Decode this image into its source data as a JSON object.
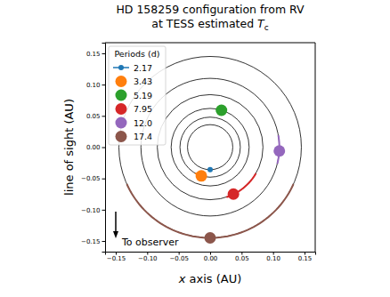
{
  "chart_data": {
    "type": "scatter",
    "title": "HD 158259 configuration from RV",
    "subtitle": "at TESS estimated Tc",
    "x_label": "x axis (AU)",
    "y_label": "line of sight (AU)",
    "legend_title": "Periods (d)",
    "annotation": "To observer",
    "legend": "upper left",
    "xlim": [
      -0.167,
      0.167
    ],
    "ylim": [
      -0.167,
      0.167
    ],
    "xticks": [
      {
        "value": -0.15,
        "label": "−0.15"
      },
      {
        "value": -0.1,
        "label": "−0.10"
      },
      {
        "value": -0.05,
        "label": "−0.05"
      },
      {
        "value": 0,
        "label": "0.00"
      },
      {
        "value": 0.05,
        "label": "0.05"
      },
      {
        "value": 0.1,
        "label": "0.10"
      },
      {
        "value": 0.15,
        "label": "0.15"
      }
    ],
    "yticks": [
      {
        "value": -0.15,
        "label": "−0.15"
      },
      {
        "value": -0.1,
        "label": "−0.10"
      },
      {
        "value": -0.05,
        "label": "−0.05"
      },
      {
        "value": 0,
        "label": "0.00"
      },
      {
        "value": 0.05,
        "label": "0.05"
      },
      {
        "value": 0.1,
        "label": "0.10"
      },
      {
        "value": 0.15,
        "label": "0.15"
      }
    ],
    "series": [
      {
        "name": "2.17",
        "color": "#1f77b4",
        "marker": ".",
        "line_style": "solid",
        "x": [
          0.0
        ],
        "values": [
          -0.036
        ],
        "orbit": 0.036,
        "arc": [
          266,
          274
        ]
      },
      {
        "name": "3.43",
        "color": "#ff7f0e",
        "marker": "o",
        "x": [
          -0.014
        ],
        "values": [
          -0.046
        ],
        "orbit": 0.048,
        "arc": [
          240,
          252
        ]
      },
      {
        "name": "5.19",
        "color": "#2ca02c",
        "marker": "o",
        "x": [
          0.018
        ],
        "values": [
          0.059
        ],
        "orbit": 0.062,
        "arc": [
          66,
          80
        ]
      },
      {
        "name": "7.95",
        "color": "#d62728",
        "marker": "o",
        "x": [
          0.037
        ],
        "values": [
          -0.075
        ],
        "orbit": 0.084,
        "arc": [
          -72,
          -30
        ]
      },
      {
        "name": "12.0",
        "color": "#9467bd",
        "marker": "o",
        "x": [
          0.11
        ],
        "values": [
          -0.006
        ],
        "orbit": 0.11,
        "arc": [
          -14,
          10
        ]
      },
      {
        "name": "17.4",
        "color": "#8c564b",
        "marker": "o",
        "x": [
          0.0
        ],
        "values": [
          -0.145
        ],
        "orbit": 0.145,
        "arc": [
          -156,
          -24
        ]
      }
    ]
  }
}
